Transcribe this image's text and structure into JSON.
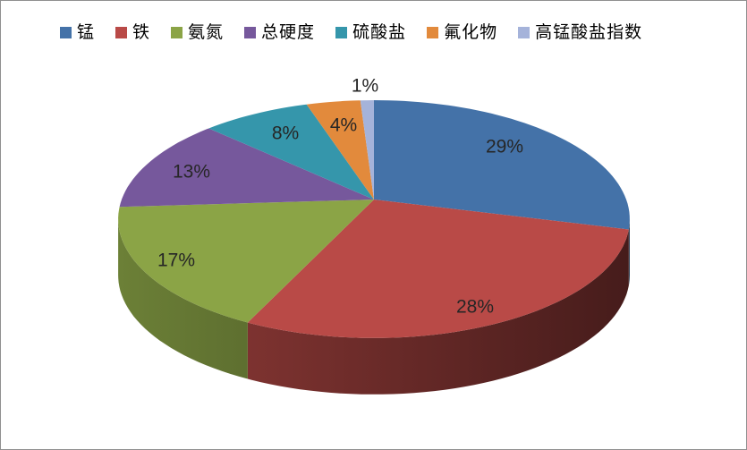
{
  "chart_data": {
    "type": "pie",
    "style": "3d",
    "title": "",
    "unit": "%",
    "legend_position": "top",
    "categories": [
      "锰",
      "铁",
      "氨氮",
      "总硬度",
      "硫酸盐",
      "氟化物",
      "高锰酸盐指数"
    ],
    "values": [
      29,
      28,
      17,
      13,
      8,
      4,
      1
    ],
    "labels": [
      "29%",
      "28%",
      "17%",
      "13%",
      "8%",
      "4%",
      "1%"
    ],
    "colors": [
      "#4472A8",
      "#B94A47",
      "#8BA446",
      "#76589C",
      "#3596AB",
      "#E28A3C",
      "#A5B3DA"
    ],
    "label_color": "#262626",
    "background": "#ffffff",
    "border_color": "#8f8f8f"
  }
}
